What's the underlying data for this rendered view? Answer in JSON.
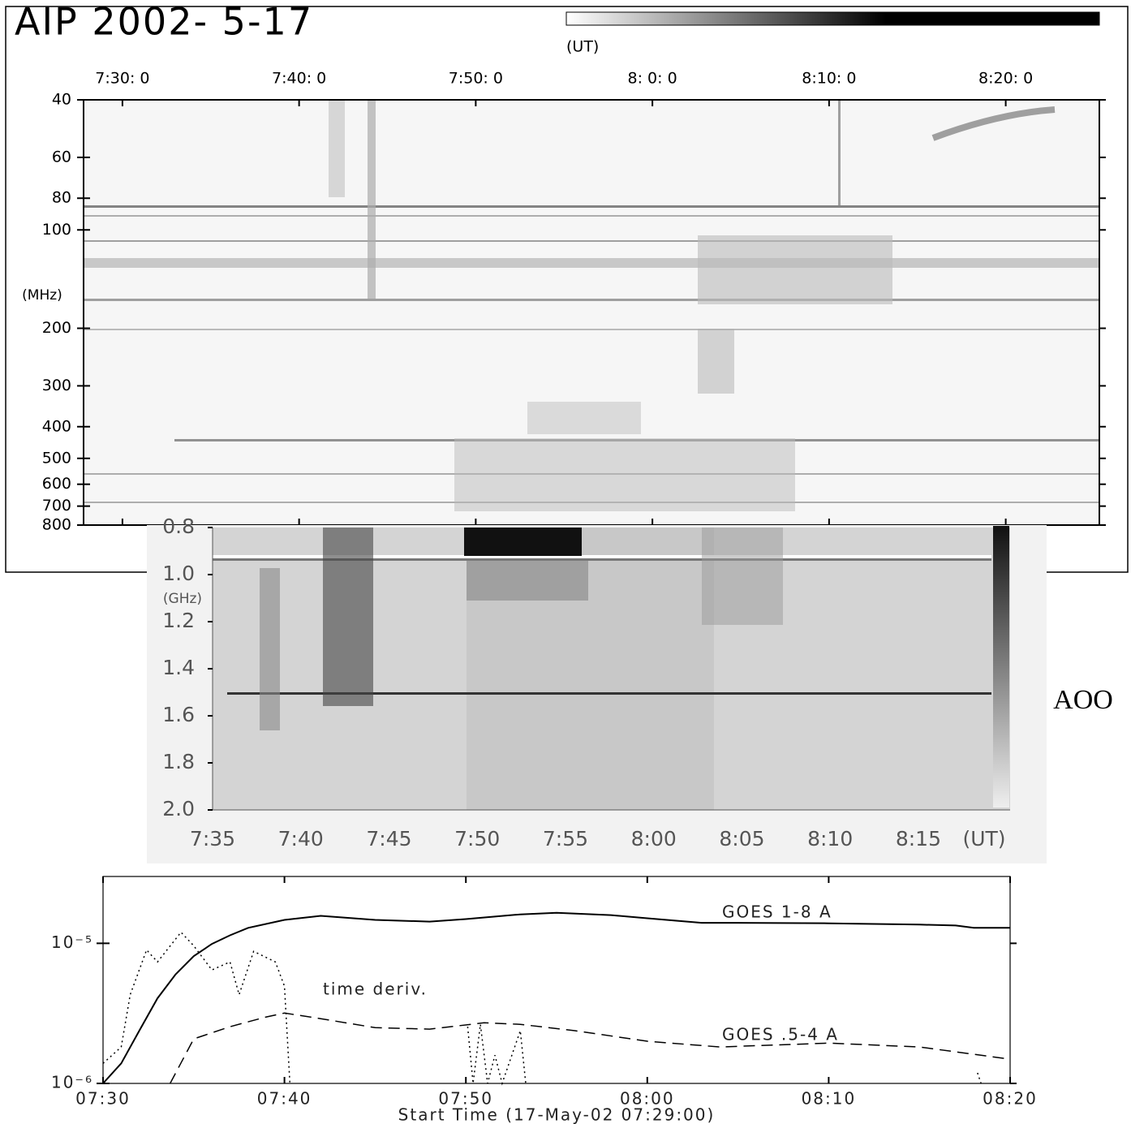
{
  "chart_data": [
    {
      "type": "spectrogram",
      "title": "AIP 2002- 5-17",
      "x_unit": "(UT)",
      "ylabel": "(MHz)",
      "xlim": [
        447.8,
        505.3
      ],
      "xticks": [
        {
          "value": 450,
          "label": "7:30: 0"
        },
        {
          "value": 460,
          "label": "7:40: 0"
        },
        {
          "value": 470,
          "label": "7:50: 0"
        },
        {
          "value": 480,
          "label": "8: 0: 0"
        },
        {
          "value": 490,
          "label": "8:10: 0"
        },
        {
          "value": 500,
          "label": "8:20: 0"
        }
      ],
      "ylim": [
        40,
        800
      ],
      "y_scale": "log",
      "y_reversed": true,
      "yticks": [
        40,
        60,
        80,
        100,
        200,
        300,
        400,
        500,
        600,
        700,
        800
      ]
    },
    {
      "type": "spectrogram",
      "ylabel": "(GHz)",
      "x_unit": "(UT)",
      "station": "AOO",
      "xlim": [
        455,
        500.2
      ],
      "xticks": [
        {
          "value": 455,
          "label": "7:35"
        },
        {
          "value": 460,
          "label": "7:40"
        },
        {
          "value": 465,
          "label": "7:45"
        },
        {
          "value": 470,
          "label": "7:50"
        },
        {
          "value": 475,
          "label": "7:55"
        },
        {
          "value": 480,
          "label": "8:00"
        },
        {
          "value": 485,
          "label": "8:05"
        },
        {
          "value": 490,
          "label": "8:10"
        },
        {
          "value": 495,
          "label": "8:15"
        }
      ],
      "ylim": [
        0.8,
        2.0
      ],
      "y_reversed": true,
      "yticks": [
        0.8,
        {
          "value": 1,
          "label": "1.0"
        },
        1.2,
        1.4,
        1.6,
        1.8,
        {
          "value": 2,
          "label": "2.0"
        }
      ]
    },
    {
      "type": "line",
      "xlabel": "Start Time (17-May-02 07:29:00)",
      "xlim": [
        450,
        500
      ],
      "xticks": [
        {
          "value": 450,
          "label": "07:30"
        },
        {
          "value": 460,
          "label": "07:40"
        },
        {
          "value": 470,
          "label": "07:50"
        },
        {
          "value": 480,
          "label": "08:00"
        },
        {
          "value": 490,
          "label": "08:10"
        },
        {
          "value": 500,
          "label": "08:20"
        }
      ],
      "ylim": [
        1e-06,
        3e-05
      ],
      "y_scale": "log",
      "yticks": [
        {
          "value": 1e-06,
          "label": "10⁻⁶"
        },
        {
          "value": 1e-05,
          "label": "10⁻⁵"
        }
      ],
      "series": [
        {
          "name": "GOES 1-8 A",
          "color": "#000000",
          "dash": "solid",
          "x": [
            450,
            451,
            452,
            453,
            454,
            455,
            456,
            457,
            458,
            460,
            462,
            465,
            468,
            470,
            473,
            475,
            478,
            480,
            483,
            485,
            490,
            495,
            497,
            498,
            500
          ],
          "values": [
            1e-06,
            1.39e-06,
            2.38e-06,
            4.05e-06,
            6e-06,
            8.1e-06,
            9.9e-06,
            1.14e-05,
            1.29e-05,
            1.47e-05,
            1.57e-05,
            1.47e-05,
            1.43e-05,
            1.49e-05,
            1.61e-05,
            1.65e-05,
            1.59e-05,
            1.51e-05,
            1.4e-05,
            1.4e-05,
            1.39e-05,
            1.36e-05,
            1.34e-05,
            1.29e-05,
            1.29e-05
          ]
        },
        {
          "name": "time deriv.",
          "color": "#000000",
          "dash": "dotted",
          "x": [
            450,
            451,
            451.5,
            452.4,
            453,
            454.3,
            455,
            456,
            457,
            457.5,
            458.3,
            459.5,
            460,
            460.3,
            465,
            470.1,
            470.4,
            470.8,
            471.2,
            471.6,
            472,
            473,
            473.3,
            480,
            498.2,
            498.4
          ],
          "values": [
            1.39e-06,
            1.82e-06,
            4.3e-06,
            8.97e-06,
            7.36e-06,
            1.2e-05,
            9.6e-06,
            6.45e-06,
            7.36e-06,
            4.3e-06,
            8.76e-06,
            7.36e-06,
            4.95e-06,
            1e-06,
            null,
            2.54e-06,
            1e-06,
            2.64e-06,
            1e-06,
            1.59e-06,
            1e-06,
            2.38e-06,
            1e-06,
            null,
            1.19e-06,
            1e-06
          ]
        },
        {
          "name": "GOES .5-4 A",
          "color": "#000000",
          "dash": "dashed",
          "x": [
            453.7,
            455,
            457,
            459,
            460,
            462,
            465,
            468,
            471,
            473,
            476,
            480,
            484,
            490,
            495,
            500
          ],
          "values": [
            1e-06,
            2.08e-06,
            2.54e-06,
            2.98e-06,
            3.18e-06,
            2.9e-06,
            2.5e-06,
            2.44e-06,
            2.71e-06,
            2.64e-06,
            2.38e-06,
            2e-06,
            1.82e-06,
            1.94e-06,
            1.82e-06,
            1.49e-06
          ]
        }
      ]
    }
  ]
}
